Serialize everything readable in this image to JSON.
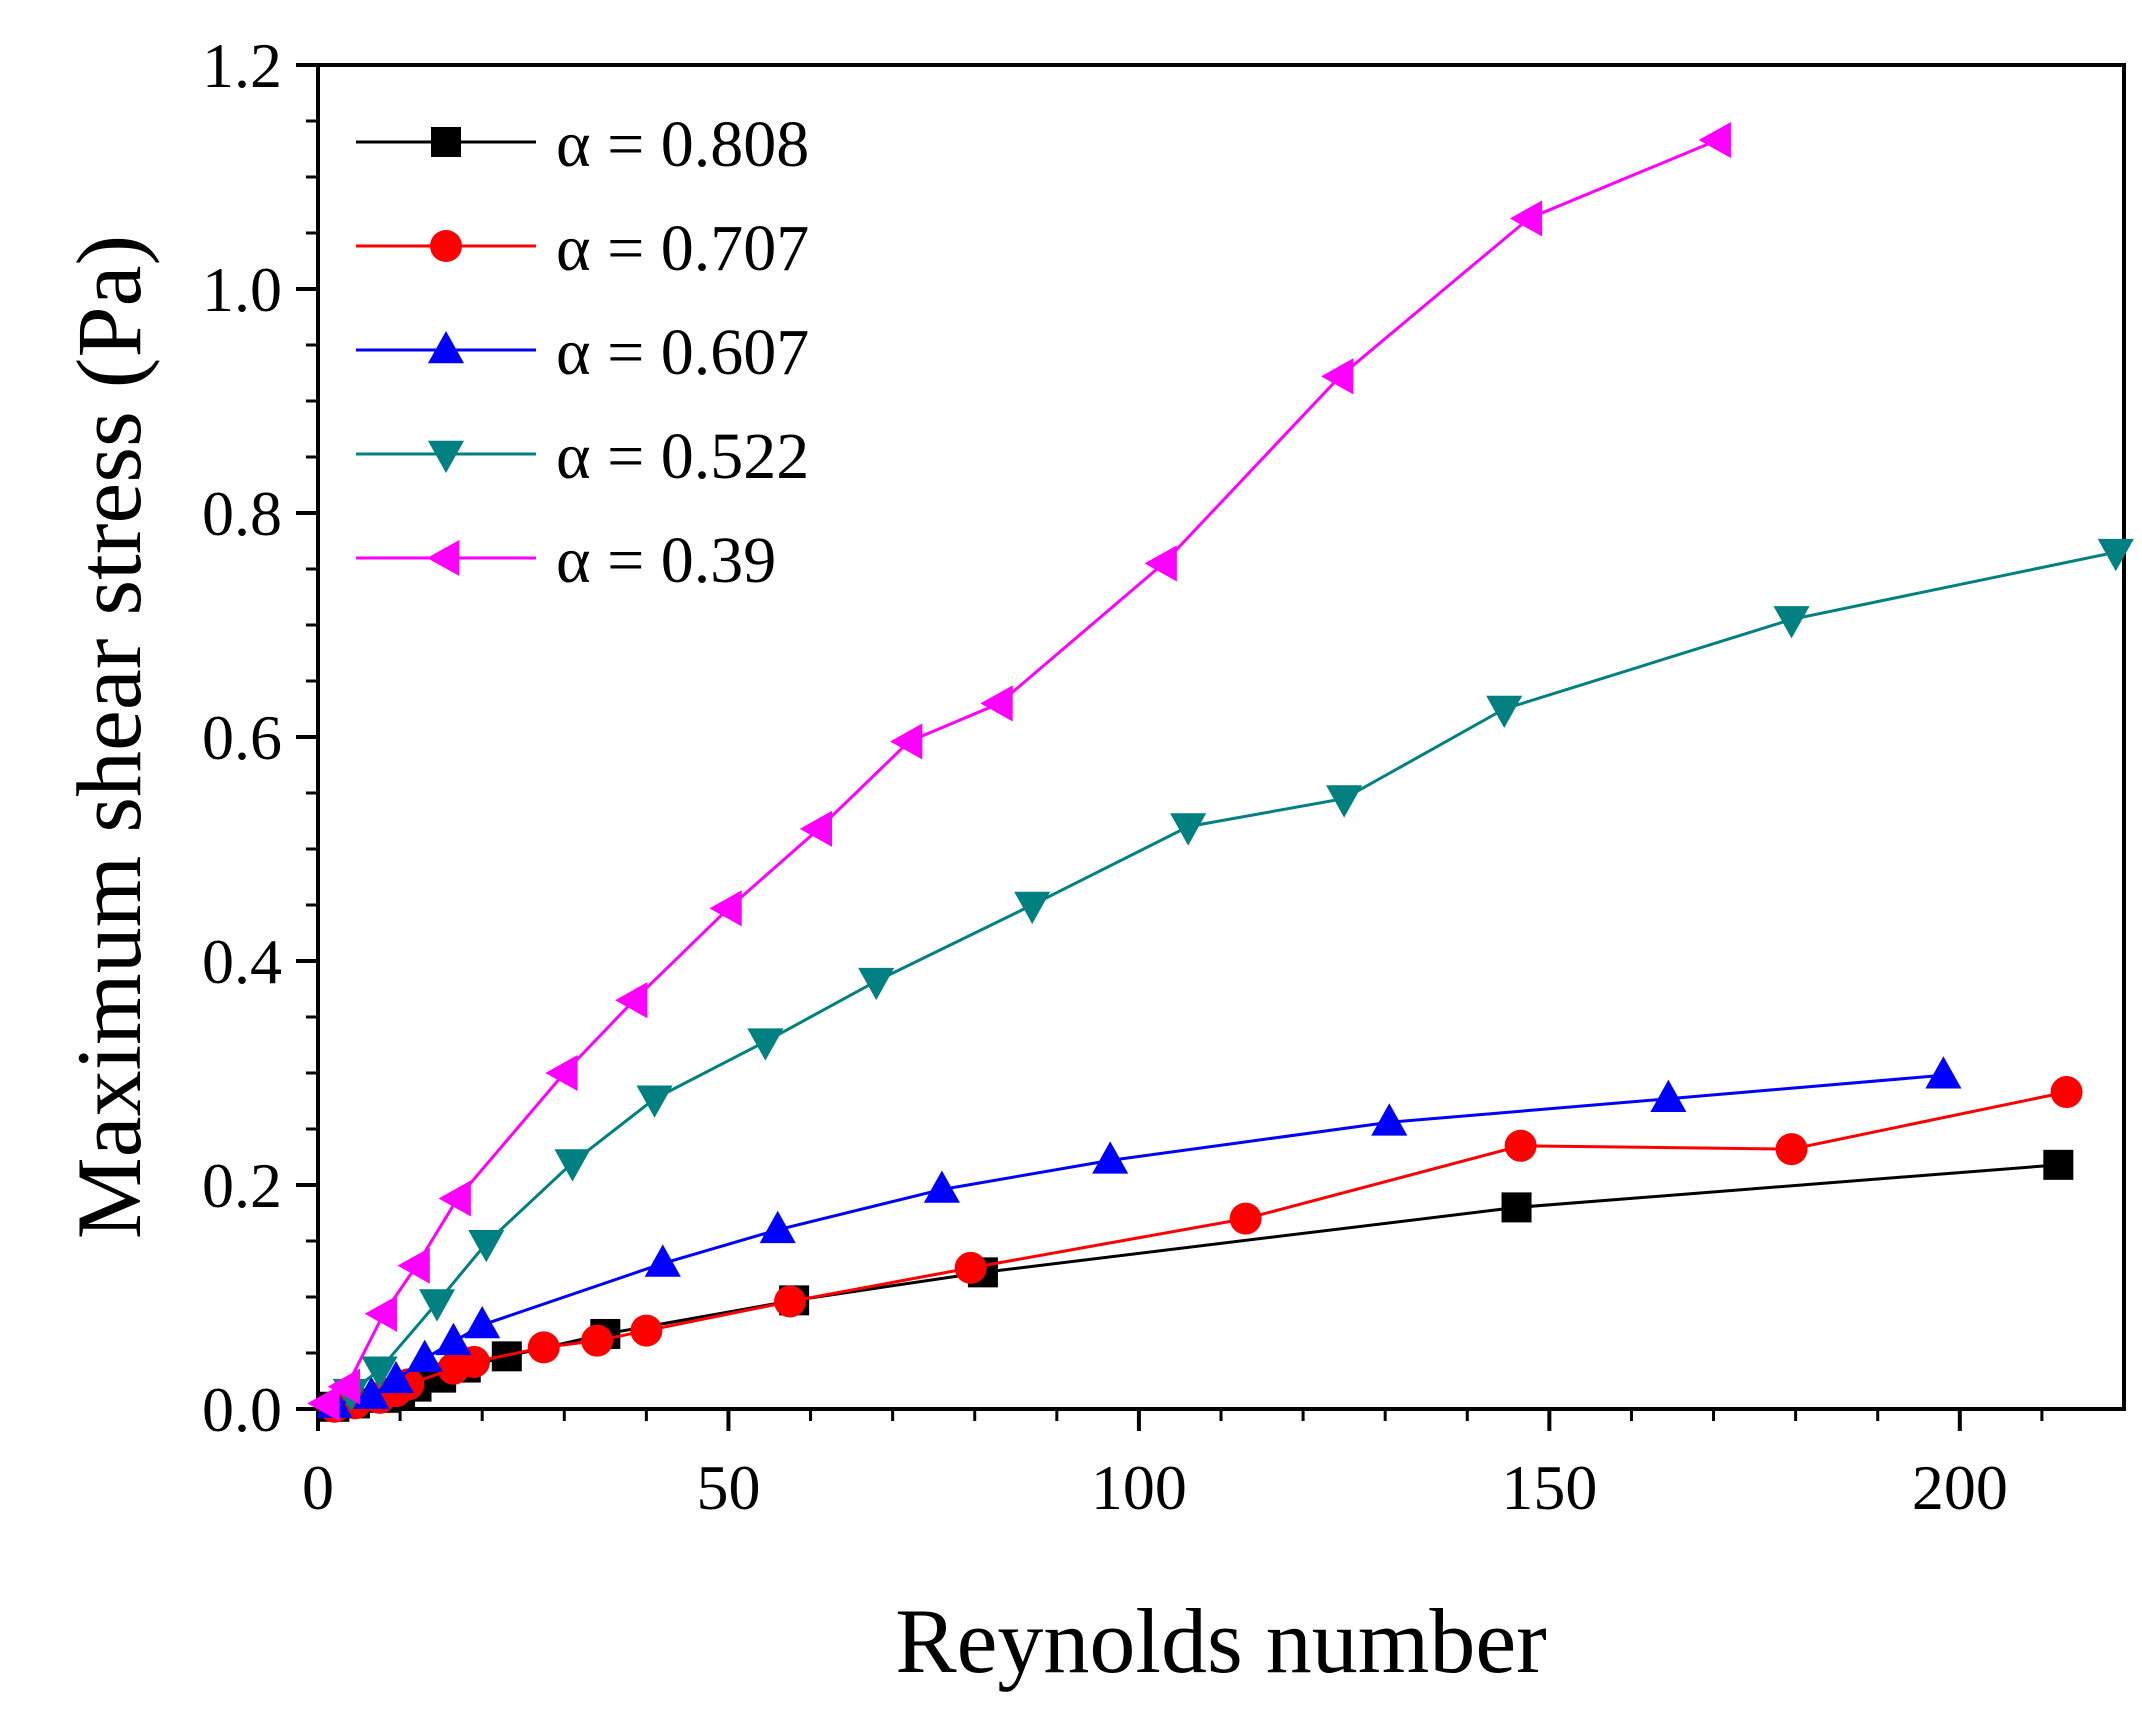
{
  "chart_data": {
    "type": "line",
    "title": "",
    "xlabel": "Reynolds number",
    "ylabel": "Maximum shear stress (Pa)",
    "xlim": [
      0,
      220
    ],
    "ylim": [
      0,
      1.2
    ],
    "xticks": [
      0,
      50,
      100,
      150,
      200
    ],
    "yticks": [
      0.0,
      0.2,
      0.4,
      0.6,
      0.8,
      1.0,
      1.2
    ],
    "xtick_labels": [
      "0",
      "50",
      "100",
      "150",
      "200"
    ],
    "ytick_labels": [
      "0.0",
      "0.2",
      "0.4",
      "0.6",
      "0.8",
      "1.0",
      "1.2"
    ],
    "grid": false,
    "legend_position": "top-left",
    "series": [
      {
        "name": "α = 0.808",
        "marker": "square",
        "color": "#000000",
        "x": [
          2,
          4.5,
          8,
          10,
          12,
          15,
          18,
          23,
          35,
          58,
          81,
          146,
          212
        ],
        "y": [
          0.002,
          0.005,
          0.01,
          0.014,
          0.02,
          0.028,
          0.037,
          0.047,
          0.067,
          0.097,
          0.122,
          0.18,
          0.218
        ]
      },
      {
        "name": "α = 0.707",
        "marker": "circle",
        "color": "#ff0000",
        "x": [
          2,
          4.5,
          7.5,
          9.5,
          11,
          16.5,
          19,
          27.5,
          34,
          40,
          57.5,
          79.5,
          113,
          146.5,
          179.5,
          213
        ],
        "y": [
          0.002,
          0.005,
          0.01,
          0.016,
          0.022,
          0.036,
          0.042,
          0.055,
          0.061,
          0.07,
          0.096,
          0.126,
          0.17,
          0.235,
          0.232,
          0.283
        ]
      },
      {
        "name": "α = 0.607",
        "marker": "triangle-up",
        "color": "#0000ff",
        "x": [
          2,
          6.5,
          9.5,
          13,
          16.5,
          20,
          42,
          56,
          76,
          96.5,
          130.5,
          164.5,
          198
        ],
        "y": [
          0.004,
          0.012,
          0.026,
          0.045,
          0.06,
          0.075,
          0.13,
          0.16,
          0.196,
          0.222,
          0.256,
          0.277,
          0.298
        ]
      },
      {
        "name": "α = 0.522",
        "marker": "triangle-down",
        "color": "#008080",
        "x": [
          4,
          7.5,
          14.5,
          20.5,
          31,
          41,
          54.5,
          68,
          87,
          106,
          125,
          144.5,
          179.5,
          219
        ],
        "y": [
          0.015,
          0.035,
          0.095,
          0.148,
          0.22,
          0.277,
          0.328,
          0.382,
          0.45,
          0.52,
          0.545,
          0.625,
          0.705,
          0.765
        ]
      },
      {
        "name": "α = 0.39",
        "marker": "triangle-left",
        "color": "#ff00ff",
        "x": [
          1,
          3.5,
          8,
          12,
          17,
          30,
          38.5,
          50,
          61,
          72,
          83,
          103,
          124.5,
          147.5,
          170.5
        ],
        "y": [
          0.005,
          0.02,
          0.085,
          0.128,
          0.188,
          0.3,
          0.365,
          0.447,
          0.518,
          0.596,
          0.63,
          0.755,
          0.922,
          1.063,
          1.133
        ]
      }
    ]
  }
}
